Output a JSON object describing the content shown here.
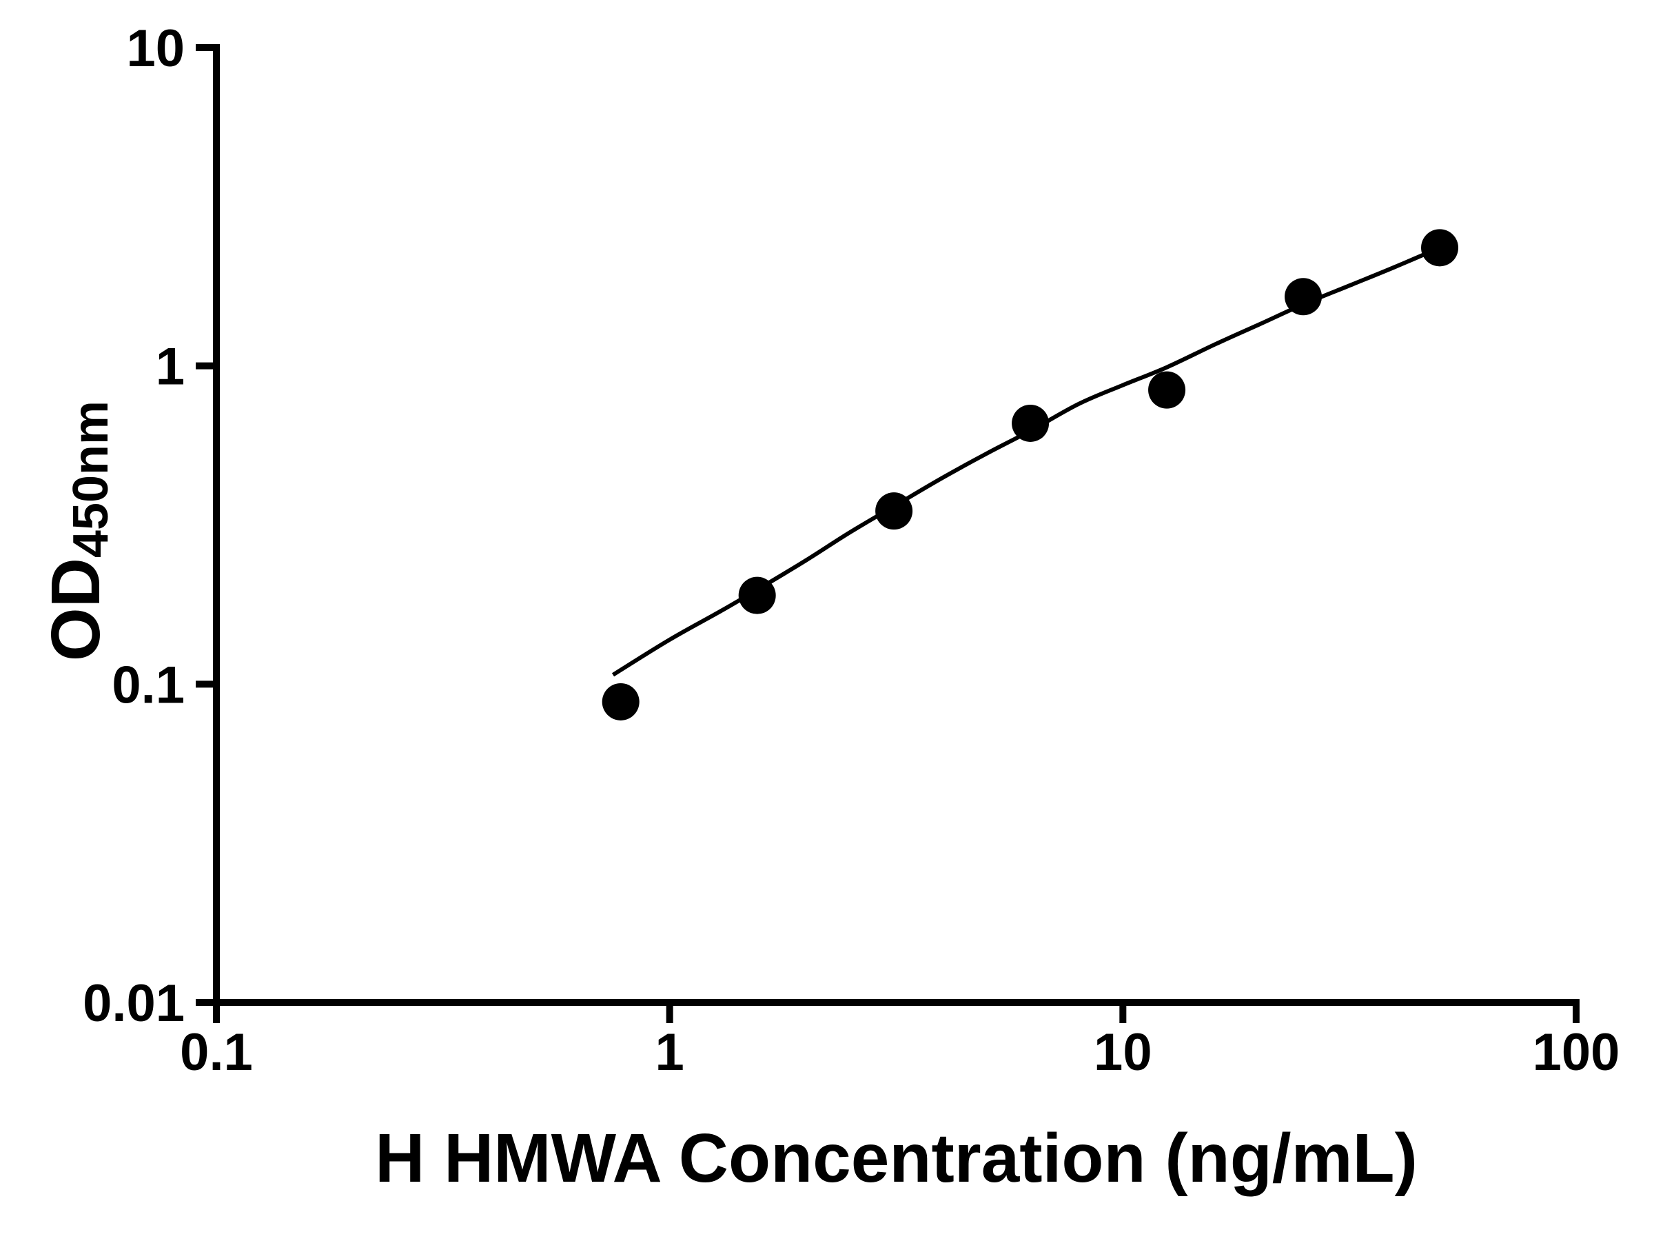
{
  "figure": {
    "background": "#ffffff",
    "foreground": "#000000"
  },
  "chart_data": {
    "type": "scatter",
    "title": "",
    "xlabel": "H HMWA Concentration (ng/mL)",
    "ylabel": "OD450nm",
    "ylabel_main": "OD",
    "ylabel_sub": "450nm",
    "x_scale": "log",
    "y_scale": "log",
    "xlim": [
      0.1,
      100
    ],
    "ylim": [
      0.01,
      10
    ],
    "grid": false,
    "legend": false,
    "marker_color": "#000000",
    "curve_color": "#000000",
    "x_ticks": [
      {
        "value": 0.1,
        "label": "0.1"
      },
      {
        "value": 1,
        "label": "1"
      },
      {
        "value": 10,
        "label": "10"
      },
      {
        "value": 100,
        "label": "100"
      }
    ],
    "y_ticks": [
      {
        "value": 0.01,
        "label": "0.01"
      },
      {
        "value": 0.1,
        "label": "0.1"
      },
      {
        "value": 1,
        "label": "1"
      },
      {
        "value": 10,
        "label": "10"
      }
    ],
    "points": [
      {
        "x": 0.78,
        "y": 0.088
      },
      {
        "x": 1.56,
        "y": 0.19
      },
      {
        "x": 3.125,
        "y": 0.35
      },
      {
        "x": 6.25,
        "y": 0.66
      },
      {
        "x": 12.5,
        "y": 0.84
      },
      {
        "x": 25,
        "y": 1.65
      },
      {
        "x": 50,
        "y": 2.35
      }
    ],
    "fit_curve": [
      [
        0.75,
        0.107
      ],
      [
        1.0,
        0.138
      ],
      [
        1.3,
        0.17
      ],
      [
        1.56,
        0.198
      ],
      [
        2.0,
        0.245
      ],
      [
        2.5,
        0.3
      ],
      [
        3.125,
        0.362
      ],
      [
        4.0,
        0.445
      ],
      [
        5.0,
        0.53
      ],
      [
        6.25,
        0.625
      ],
      [
        8.0,
        0.76
      ],
      [
        10.0,
        0.87
      ],
      [
        12.5,
        0.99
      ],
      [
        16.0,
        1.17
      ],
      [
        20.0,
        1.35
      ],
      [
        25.0,
        1.56
      ],
      [
        32.0,
        1.8
      ],
      [
        40.0,
        2.05
      ],
      [
        50.0,
        2.35
      ]
    ]
  }
}
